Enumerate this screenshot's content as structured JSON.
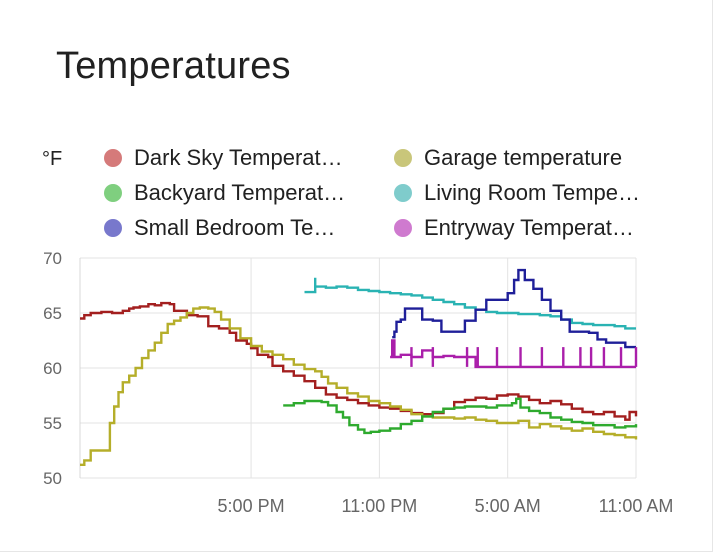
{
  "card": {
    "title": "Temperatures"
  },
  "chart_data": {
    "type": "line",
    "title": "Temperatures",
    "ylabel": "°F",
    "ylim": [
      50,
      70
    ],
    "yticks": [
      50,
      55,
      60,
      65,
      70
    ],
    "xlim": [
      9,
      35
    ],
    "xticks": [
      {
        "x": 17,
        "label": "5:00 PM"
      },
      {
        "x": 23,
        "label": "11:00 PM"
      },
      {
        "x": 29,
        "label": "5:00 AM"
      },
      {
        "x": 35,
        "label": "11:00 AM"
      }
    ],
    "x_unit_note": "hours (x values are hours from midnight of first day)",
    "grid": true,
    "legend_position": "top",
    "series": [
      {
        "name": "Dark Sky Temperat…",
        "color": "#d57a7a",
        "line_color": "#a31f1f",
        "points": [
          [
            9,
            64.5
          ],
          [
            9.2,
            64.8
          ],
          [
            9.5,
            65
          ],
          [
            10,
            65.1
          ],
          [
            10.5,
            65
          ],
          [
            11,
            65.2
          ],
          [
            11.3,
            65.4
          ],
          [
            11.5,
            65.5
          ],
          [
            11.8,
            65.6
          ],
          [
            12.2,
            65.8
          ],
          [
            12.5,
            65.7
          ],
          [
            12.8,
            65.9
          ],
          [
            13.2,
            65.8
          ],
          [
            13.4,
            65.2
          ],
          [
            14,
            64.8
          ],
          [
            14.5,
            64.7
          ],
          [
            15,
            63.8
          ],
          [
            15.5,
            63.6
          ],
          [
            16,
            63.2
          ],
          [
            16.3,
            62.5
          ],
          [
            16.8,
            62.2
          ],
          [
            17,
            61.8
          ],
          [
            17.3,
            61.2
          ],
          [
            17.8,
            61
          ],
          [
            18,
            60.2
          ],
          [
            18.5,
            59.7
          ],
          [
            19,
            59.3
          ],
          [
            19.5,
            58.8
          ],
          [
            20,
            58.2
          ],
          [
            20.5,
            57.6
          ],
          [
            21,
            57.3
          ],
          [
            21.5,
            57.1
          ],
          [
            22,
            56.8
          ],
          [
            22.5,
            56.6
          ],
          [
            23,
            56.4
          ],
          [
            23.5,
            56.3
          ],
          [
            24,
            56.1
          ],
          [
            24.5,
            55.9
          ],
          [
            25,
            55.8
          ],
          [
            25.5,
            55.9
          ],
          [
            26,
            56.3
          ],
          [
            26.5,
            56.9
          ],
          [
            27,
            57.1
          ],
          [
            27.5,
            57.3
          ],
          [
            28,
            57.2
          ],
          [
            28.5,
            57.5
          ],
          [
            29,
            57.6
          ],
          [
            29.5,
            57.4
          ],
          [
            30,
            57.1
          ],
          [
            30.5,
            56.8
          ],
          [
            31,
            57
          ],
          [
            31.5,
            56.7
          ],
          [
            32,
            56.3
          ],
          [
            32.5,
            56
          ],
          [
            33,
            55.8
          ],
          [
            33.5,
            56
          ],
          [
            34,
            55.6
          ],
          [
            34.5,
            55.3
          ],
          [
            34.7,
            56
          ],
          [
            35,
            55.6
          ]
        ]
      },
      {
        "name": "Garage temperature",
        "color": "#c9c67a",
        "line_color": "#b5ae2a",
        "points": [
          [
            9,
            51.2
          ],
          [
            9.2,
            51.6
          ],
          [
            9.5,
            52.5
          ],
          [
            10,
            52.5
          ],
          [
            10.3,
            52.5
          ],
          [
            10.4,
            55
          ],
          [
            10.6,
            56.5
          ],
          [
            10.8,
            57.8
          ],
          [
            11,
            58.7
          ],
          [
            11.3,
            59.3
          ],
          [
            11.6,
            60
          ],
          [
            11.9,
            60.9
          ],
          [
            12.2,
            61.6
          ],
          [
            12.5,
            62.3
          ],
          [
            12.8,
            63.2
          ],
          [
            13.1,
            64
          ],
          [
            13.4,
            64.3
          ],
          [
            13.7,
            64.6
          ],
          [
            14,
            65
          ],
          [
            14.3,
            65.4
          ],
          [
            14.6,
            65.5
          ],
          [
            15,
            65.4
          ],
          [
            15.3,
            65.1
          ],
          [
            15.6,
            64.4
          ],
          [
            16,
            63.6
          ],
          [
            16.5,
            62.7
          ],
          [
            17,
            62
          ],
          [
            17.5,
            61.5
          ],
          [
            18,
            61.2
          ],
          [
            18.5,
            60.8
          ],
          [
            19,
            60.3
          ],
          [
            19.5,
            59.9
          ],
          [
            20,
            59.7
          ],
          [
            20.3,
            59.2
          ],
          [
            20.6,
            58.6
          ],
          [
            21,
            58.2
          ],
          [
            21.5,
            57.7
          ],
          [
            22,
            57.4
          ],
          [
            22.5,
            57
          ],
          [
            23,
            56.8
          ],
          [
            23.5,
            56.5
          ],
          [
            24,
            56.2
          ],
          [
            24.5,
            55.8
          ],
          [
            25,
            55.6
          ],
          [
            25.5,
            55.5
          ],
          [
            26,
            55.5
          ],
          [
            26.5,
            55.4
          ],
          [
            27,
            55.5
          ],
          [
            27.5,
            55.3
          ],
          [
            28,
            55.2
          ],
          [
            28.5,
            55
          ],
          [
            29,
            55
          ],
          [
            29.5,
            55.2
          ],
          [
            30,
            54.6
          ],
          [
            30.5,
            54.9
          ],
          [
            31,
            54.7
          ],
          [
            31.5,
            54.5
          ],
          [
            32,
            54.3
          ],
          [
            32.5,
            54.5
          ],
          [
            33,
            54.2
          ],
          [
            33.5,
            54
          ],
          [
            34,
            53.9
          ],
          [
            34.5,
            53.7
          ],
          [
            35,
            53.5
          ]
        ]
      },
      {
        "name": "Backyard Temperat…",
        "color": "#7fcf7f",
        "line_color": "#2eaa2e",
        "points": [
          [
            18.5,
            56.6
          ],
          [
            19,
            56.8
          ],
          [
            19.5,
            57.0
          ],
          [
            20,
            57.0
          ],
          [
            20.3,
            56.9
          ],
          [
            20.6,
            56.6
          ],
          [
            21,
            56.0
          ],
          [
            21.3,
            55.5
          ],
          [
            21.6,
            54.8
          ],
          [
            22,
            54.4
          ],
          [
            22.3,
            54.1
          ],
          [
            22.6,
            54.2
          ],
          [
            23,
            54.3
          ],
          [
            23.5,
            54.5
          ],
          [
            24,
            54.9
          ],
          [
            24.5,
            55.2
          ],
          [
            25,
            55.6
          ],
          [
            25.5,
            56
          ],
          [
            26,
            56.3
          ],
          [
            26.5,
            56.4
          ],
          [
            27,
            56.5
          ],
          [
            27.5,
            56.5
          ],
          [
            28,
            56.4
          ],
          [
            28.5,
            56.6
          ],
          [
            29,
            56.6
          ],
          [
            29.2,
            56.8
          ],
          [
            29.4,
            57.2
          ],
          [
            29.6,
            56.4
          ],
          [
            30,
            56.1
          ],
          [
            30.5,
            55.9
          ],
          [
            31,
            55.5
          ],
          [
            31.5,
            55.3
          ],
          [
            32,
            55.1
          ],
          [
            32.5,
            55
          ],
          [
            33,
            54.8
          ],
          [
            33.5,
            54.8
          ],
          [
            34,
            54.6
          ],
          [
            34.5,
            54.7
          ],
          [
            35,
            54.9
          ]
        ]
      },
      {
        "name": "Living Room Tempe…",
        "color": "#7fcccc",
        "line_color": "#2ab3b3",
        "points": [
          [
            19.5,
            66.9
          ],
          [
            19.9,
            66.9
          ],
          [
            20,
            68.2
          ],
          [
            20,
            67.4
          ],
          [
            20.5,
            67.3
          ],
          [
            21,
            67.4
          ],
          [
            21.5,
            67.3
          ],
          [
            22,
            67.1
          ],
          [
            22.5,
            67
          ],
          [
            23,
            66.9
          ],
          [
            23.5,
            66.8
          ],
          [
            24,
            66.7
          ],
          [
            24.5,
            66.6
          ],
          [
            25,
            66.4
          ],
          [
            25.5,
            66.2
          ],
          [
            26,
            66
          ],
          [
            26.5,
            65.8
          ],
          [
            27,
            65.5
          ],
          [
            27.5,
            65.3
          ],
          [
            28,
            65.1
          ],
          [
            28.5,
            65
          ],
          [
            29,
            65
          ],
          [
            29.5,
            64.9
          ],
          [
            30,
            64.9
          ],
          [
            30.5,
            64.8
          ],
          [
            31,
            64.7
          ],
          [
            31.5,
            64.4
          ],
          [
            32,
            64.1
          ],
          [
            32.5,
            64
          ],
          [
            33,
            63.9
          ],
          [
            33.5,
            63.9
          ],
          [
            34,
            63.8
          ],
          [
            34.5,
            63.6
          ],
          [
            35,
            63.6
          ]
        ]
      },
      {
        "name": "Small Bedroom Te…",
        "color": "#7878cc",
        "line_color": "#1f1f99",
        "points": [
          [
            23.6,
            62.8
          ],
          [
            23.7,
            63.3
          ],
          [
            23.8,
            64.2
          ],
          [
            24,
            64.4
          ],
          [
            24.2,
            65.4
          ],
          [
            24.8,
            65.4
          ],
          [
            25,
            64.4
          ],
          [
            25.5,
            64.3
          ],
          [
            25.9,
            63.3
          ],
          [
            26.5,
            63.3
          ],
          [
            27,
            64.3
          ],
          [
            27.5,
            65.3
          ],
          [
            28,
            66.2
          ],
          [
            28.6,
            66.2
          ],
          [
            29,
            66.8
          ],
          [
            29.3,
            68
          ],
          [
            29.5,
            68.9
          ],
          [
            29.8,
            68
          ],
          [
            30.2,
            67.2
          ],
          [
            30.6,
            66.2
          ],
          [
            31,
            65.2
          ],
          [
            31.5,
            64.4
          ],
          [
            31.9,
            63.3
          ],
          [
            32.4,
            63.3
          ],
          [
            32.8,
            63.2
          ],
          [
            33.2,
            62.6
          ],
          [
            33.6,
            62.3
          ],
          [
            34,
            62.3
          ],
          [
            34.5,
            61.9
          ],
          [
            35,
            61.9
          ]
        ]
      },
      {
        "name": "Entryway Temperat…",
        "color": "#cf7acf",
        "line_color": "#aa1faa",
        "points": [
          [
            23.5,
            61
          ],
          [
            23.6,
            62.5
          ],
          [
            23.7,
            61
          ],
          [
            24,
            61.2
          ],
          [
            24.5,
            61
          ],
          [
            25,
            61.6
          ],
          [
            25.5,
            61
          ],
          [
            26,
            61.1
          ],
          [
            26.5,
            61
          ],
          [
            27,
            61
          ],
          [
            27.5,
            60.1
          ],
          [
            28,
            60.1
          ],
          [
            28.5,
            60.1
          ],
          [
            29,
            60.1
          ],
          [
            29.5,
            60.1
          ],
          [
            30,
            60.1
          ],
          [
            30.5,
            60.1
          ],
          [
            31,
            60.1
          ],
          [
            31.5,
            60.1
          ],
          [
            32,
            60.1
          ],
          [
            32.5,
            60.1
          ],
          [
            33,
            60.1
          ],
          [
            33.5,
            60.1
          ],
          [
            34,
            60.1
          ],
          [
            34.5,
            60.1
          ],
          [
            35,
            60.1
          ]
        ],
        "spikes": [
          24.5,
          25.5,
          27.1,
          27.6,
          28.5,
          29.6,
          30.6,
          31.6,
          32.4,
          32.9,
          33.5,
          34.3,
          35
        ]
      }
    ]
  }
}
